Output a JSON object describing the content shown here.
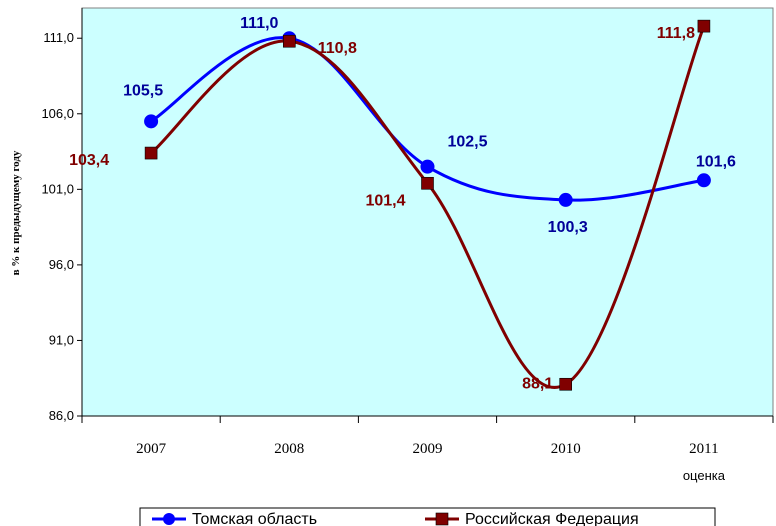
{
  "chart_data": {
    "type": "line",
    "categories": [
      "2007",
      "2008",
      "2009",
      "2010",
      "2011"
    ],
    "category_sublabels": [
      "",
      "",
      "",
      "",
      "оценка"
    ],
    "ylabel": "в % к предыдущему году",
    "ylim": [
      86.0,
      113.0
    ],
    "yticks": [
      "86,0",
      "91,0",
      "96,0",
      "101,0",
      "106,0",
      "111,0"
    ],
    "ytick_values": [
      86,
      91,
      96,
      101,
      106,
      111
    ],
    "series": [
      {
        "name": "Томская область",
        "values": [
          105.5,
          111.0,
          102.5,
          100.3,
          101.6
        ],
        "labels": [
          "105,5",
          "111,0",
          "102,5",
          "100,3",
          "101,6"
        ],
        "color": "#0000FF",
        "label_color": "#000099",
        "marker": "circle"
      },
      {
        "name": "Российская Федерация",
        "values": [
          103.4,
          110.8,
          101.4,
          88.1,
          111.8
        ],
        "labels": [
          "103,4",
          "110,8",
          "101,4",
          "88,1",
          "111,8"
        ],
        "color": "#800000",
        "label_color": "#800000",
        "marker": "square"
      }
    ],
    "plot_background": "#CCFFFF",
    "grid": false,
    "legend_position": "bottom"
  }
}
